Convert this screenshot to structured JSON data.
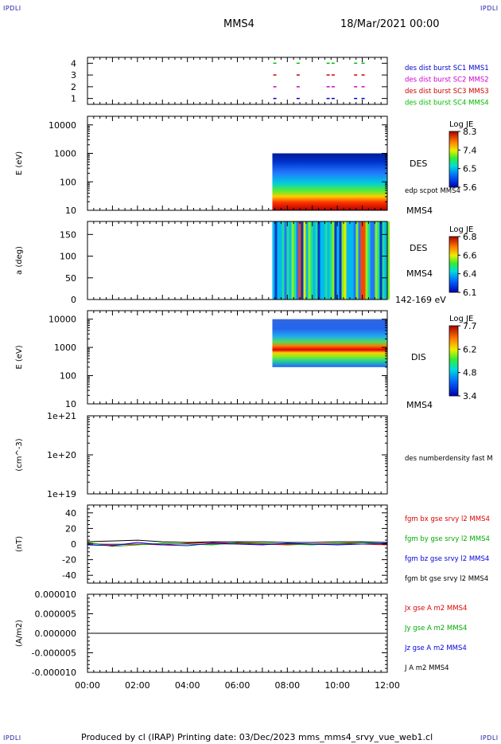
{
  "corners": {
    "tl": "IPDLI",
    "tr": "IPDLI",
    "bl": "IPDLI",
    "br": "IPDLI"
  },
  "header": {
    "spacecraft": "MMS4",
    "date": "18/Mar/2021 00:00"
  },
  "footer": {
    "text": "Produced by cl (IRAP)    Printing date: 03/Dec/2023    mms_mms4_srvy_vue_web1.cl"
  },
  "colors": {
    "panel_border": "#000000",
    "sc1": "#0000cc",
    "sc2": "#cc00cc",
    "sc3": "#cc0000",
    "sc4": "#00bb00",
    "bx": "#dd0000",
    "by": "#00aa00",
    "bz": "#0000dd",
    "bt": "#000000"
  },
  "chart_data": [
    {
      "type": "scatter",
      "id": "burst_availability",
      "xlim": [
        "00:00",
        "12:00"
      ],
      "ylim": [
        0.5,
        4.5
      ],
      "yticks": [
        "4",
        "3",
        "2",
        "1"
      ],
      "series": [
        {
          "name": "des dist burst SC1 MMS1",
          "y": 1,
          "x": [
            "07:28",
            "08:24",
            "09:36",
            "09:48",
            "10:42",
            "11:00"
          ]
        },
        {
          "name": "des dist burst SC2 MMS2",
          "y": 2,
          "x": [
            "07:28",
            "08:24",
            "09:36",
            "09:48",
            "10:42",
            "11:00"
          ]
        },
        {
          "name": "des dist burst SC3 MMS3",
          "y": 3,
          "x": [
            "07:28",
            "08:24",
            "09:36",
            "09:48",
            "10:42",
            "11:00"
          ]
        },
        {
          "name": "des dist burst SC4 MMS4",
          "y": 4,
          "x": [
            "07:28",
            "08:24",
            "09:36",
            "09:48",
            "10:42",
            "11:00"
          ]
        }
      ]
    },
    {
      "type": "heatmap",
      "id": "des_energy",
      "ylabel": "E (eV)",
      "yscale": "log",
      "ylim": [
        10,
        20000
      ],
      "yticks": [
        "10000",
        "1000",
        "100",
        "10"
      ],
      "label": "DES",
      "label2": "edp scpot MMS4",
      "label3": "MMS4",
      "data_start": "07:24",
      "data_end": "12:00",
      "energy_range": [
        10,
        1000
      ],
      "colorbar": {
        "title": "Log JE",
        "max": "8.3",
        "mid": "7.4",
        "low": "6.5",
        "min": "5.6"
      }
    },
    {
      "type": "heatmap",
      "id": "des_pitch",
      "ylabel": "a (deg)",
      "ylim": [
        0,
        180
      ],
      "yticks": [
        "150",
        "100",
        "50",
        "0"
      ],
      "label": "DES",
      "label2": "MMS4",
      "label3": "142-169 eV",
      "data_start": "07:24",
      "data_end": "12:00",
      "colorbar": {
        "title": "Log JE",
        "max": "6.8",
        "mid": "6.6",
        "low": "6.4",
        "min": "6.1"
      }
    },
    {
      "type": "heatmap",
      "id": "dis_energy",
      "ylabel": "E (eV)",
      "yscale": "log",
      "ylim": [
        10,
        20000
      ],
      "yticks": [
        "10000",
        "1000",
        "100",
        "10"
      ],
      "label": "DIS",
      "label3": "MMS4",
      "data_start": "07:24",
      "data_end": "12:00",
      "energy_range": [
        200,
        10000
      ],
      "colorbar": {
        "title": "Log JE",
        "max": "7.7",
        "mid": "6.2",
        "low": "4.8",
        "min": "3.4"
      }
    },
    {
      "type": "line",
      "id": "density",
      "ylabel": "(cm^-3)",
      "yscale": "log",
      "yticks": [
        "1e+21",
        "1e+20",
        "1e+19"
      ],
      "legend": [
        "des numberdensity fast M"
      ],
      "series": []
    },
    {
      "type": "line",
      "id": "fgm",
      "ylabel": "(nT)",
      "ylim": [
        -50,
        50
      ],
      "yticks": [
        "40",
        "20",
        "0",
        "-20",
        "-40"
      ],
      "legend": [
        "fgm bx gse srvy l2 MMS4",
        "fgm by gse srvy l2 MMS4",
        "fgm bz gse srvy l2 MMS4",
        "fgm bt gse srvy l2 MMS4"
      ],
      "x": [
        "00:00",
        "01:00",
        "02:00",
        "03:00",
        "04:00",
        "05:00",
        "06:00",
        "07:00",
        "08:00",
        "09:00",
        "10:00",
        "11:00",
        "12:00"
      ],
      "series": [
        {
          "name": "fgm bx gse srvy l2 MMS4",
          "values": [
            1,
            -1,
            0,
            -1,
            1,
            2,
            1,
            0,
            -1,
            0,
            1,
            0,
            -1
          ]
        },
        {
          "name": "fgm by gse srvy l2 MMS4",
          "values": [
            2,
            -3,
            -1,
            1,
            0,
            -1,
            2,
            1,
            0,
            -1,
            1,
            2,
            0
          ]
        },
        {
          "name": "fgm bz gse srvy l2 MMS4",
          "values": [
            -1,
            -2,
            2,
            -1,
            -2,
            1,
            0,
            -1,
            1,
            0,
            -1,
            0,
            1
          ]
        },
        {
          "name": "fgm bt gse srvy l2 MMS4",
          "values": [
            3,
            4,
            5,
            3,
            2,
            3,
            3,
            3,
            2,
            2,
            3,
            3,
            2
          ]
        }
      ]
    },
    {
      "type": "line",
      "id": "current",
      "ylabel": "(A/m2)",
      "ylim": [
        -1e-05,
        1e-05
      ],
      "yticks": [
        "0.000010",
        "0.000005",
        "0.000000",
        "-0.000005",
        "-0.000010"
      ],
      "legend": [
        "Jx gse A m2 MMS4",
        "Jy gse A m2 MMS4",
        "Jz gse A m2 MMS4",
        "J A m2 MMS4"
      ],
      "x": [
        "00:00",
        "02:00",
        "04:00",
        "06:00",
        "08:00",
        "10:00",
        "12:00"
      ],
      "xticks": [
        "00:00",
        "02:00",
        "04:00",
        "06:00",
        "08:00",
        "10:00",
        "12:00"
      ],
      "series": [
        {
          "name": "J A m2 MMS4",
          "values": [
            0,
            0,
            0,
            0,
            0,
            0,
            0
          ]
        }
      ]
    }
  ]
}
